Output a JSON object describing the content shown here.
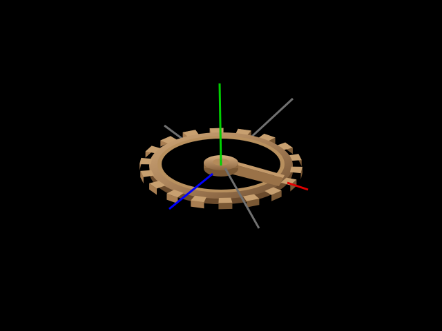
{
  "scene": {
    "background": "#000000",
    "object": "gear-wheel",
    "gear": {
      "teeth": 18,
      "spokes": 1,
      "colors": {
        "light": "#c8a070",
        "mid": "#a87e52",
        "dark": "#7a5834",
        "shadow": "#5c4024"
      }
    },
    "axes": {
      "x": "#e00000",
      "y": "#00d000",
      "z": "#0000ff",
      "helper": "#7a7a7a"
    }
  }
}
